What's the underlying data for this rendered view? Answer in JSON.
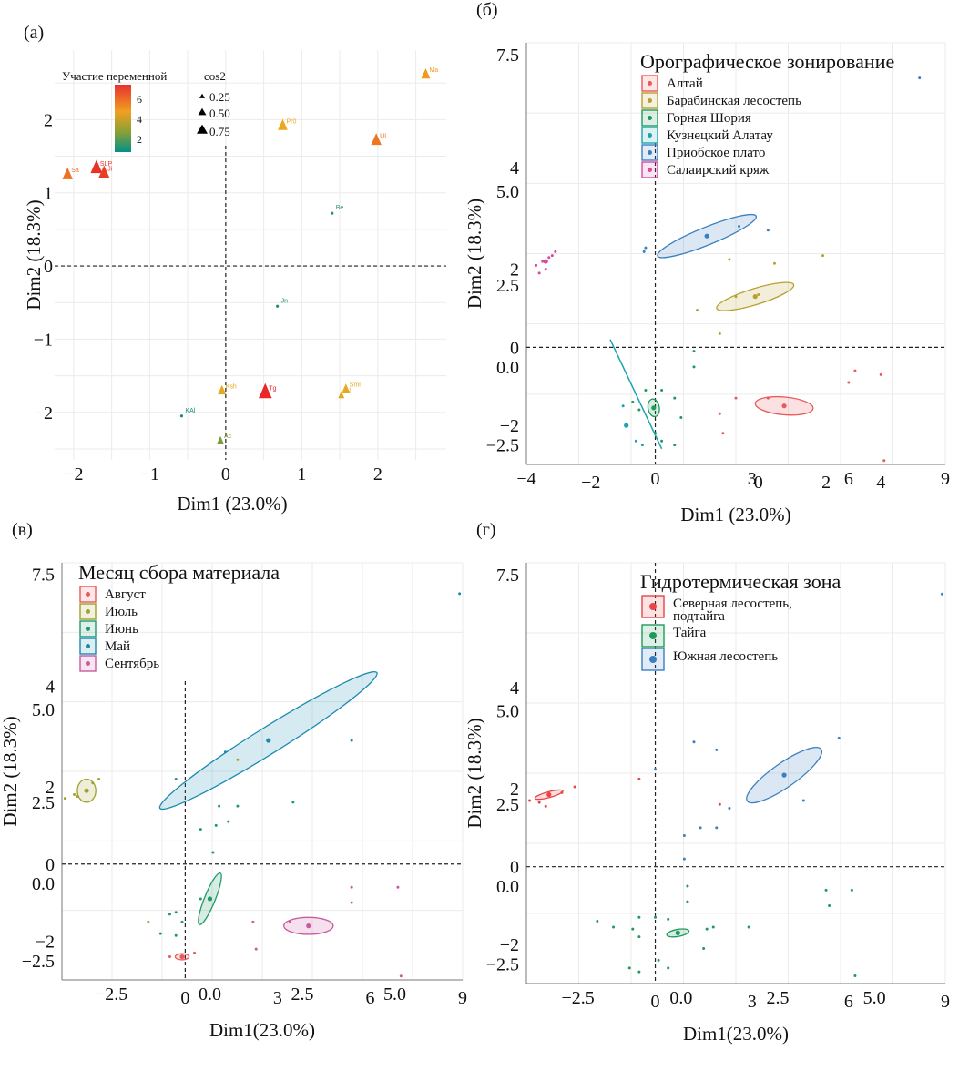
{
  "chart_data": [
    {
      "id": "a",
      "type": "scatter",
      "panel_label": "(a)",
      "xlabel": "Dim1 (23.0%)",
      "ylabel": "Dim2 (18.3%)",
      "xlim": [
        -2.25,
        2.9
      ],
      "ylim": [
        -2.65,
        2.95
      ],
      "x_ticks": [
        "-2",
        "-1",
        "0",
        "1",
        "2"
      ],
      "x_tick_values": [
        -2,
        -1,
        0,
        1,
        2
      ],
      "y_ticks": [
        "2",
        "1",
        "0",
        "-1",
        "-2"
      ],
      "y_tick_values": [
        2,
        1,
        0,
        -1,
        -2
      ],
      "grid": true,
      "legend_color_title": "Участие переменной",
      "legend_color_ticks": [
        "6",
        "4",
        "2"
      ],
      "legend_size_title": "cos2",
      "legend_size_items": [
        "0.25",
        "0.50",
        "0.75"
      ],
      "points": [
        {
          "label": "Ma",
          "x": 2.63,
          "y": 2.6,
          "contrib": 4.8,
          "cos2": 0.5
        },
        {
          "label": "Pr0",
          "x": 0.75,
          "y": 1.9,
          "contrib": 4.6,
          "cos2": 0.55
        },
        {
          "label": "UL",
          "x": 1.98,
          "y": 1.7,
          "contrib": 5.5,
          "cos2": 0.6
        },
        {
          "label": "Sa",
          "x": -2.08,
          "y": 1.23,
          "contrib": 5.6,
          "cos2": 0.6
        },
        {
          "label": "SLP",
          "x": -1.7,
          "y": 1.32,
          "contrib": 6.8,
          "cos2": 0.7
        },
        {
          "label": "Ji",
          "x": -1.6,
          "y": 1.25,
          "contrib": 6.6,
          "cos2": 0.65
        },
        {
          "label": "Be",
          "x": 1.4,
          "y": 0.72,
          "contrib": 1.6,
          "cos2": 0.1
        },
        {
          "label": "Jn",
          "x": 0.68,
          "y": -0.55,
          "contrib": 1.4,
          "cos2": 0.15
        },
        {
          "label": "Ksh",
          "x": -0.05,
          "y": -1.72,
          "contrib": 4.3,
          "cos2": 0.45
        },
        {
          "label": "Tg",
          "x": 0.52,
          "y": -1.75,
          "contrib": 7.0,
          "cos2": 0.8
        },
        {
          "label": "Sml",
          "x": 1.58,
          "y": -1.7,
          "contrib": 4.4,
          "cos2": 0.45
        },
        {
          "label": "Al",
          "x": 1.52,
          "y": -1.78,
          "contrib": 4.2,
          "cos2": 0.3
        },
        {
          "label": "KAl",
          "x": -0.58,
          "y": -2.05,
          "contrib": 1.3,
          "cos2": 0.1
        },
        {
          "label": "Ac",
          "x": -0.07,
          "y": -2.4,
          "contrib": 2.6,
          "cos2": 0.35
        }
      ]
    },
    {
      "id": "b",
      "type": "scatter",
      "panel_label": "(б)",
      "xlabel": "Dim1 (23.0%)",
      "ylabel": "Dim2 (18.3%)",
      "x_ticks": [
        "-4",
        "-2",
        "0",
        "0",
        "3",
        "2",
        "6",
        "4",
        "9"
      ],
      "y_ticks": [
        "7.5",
        "4",
        "5.0",
        "2",
        "2.5",
        "0",
        "0.0",
        "-2",
        "-2.5"
      ],
      "legend_title": "Орографическое зонирование",
      "legend": [
        {
          "name": "Алтай",
          "color": "#e8595a"
        },
        {
          "name": "Барабинская лесостепь",
          "color": "#b8a030"
        },
        {
          "name": "Горная Шория",
          "color": "#1f9a5a"
        },
        {
          "name": "Кузнецкий Алатау",
          "color": "#1aa3b0"
        },
        {
          "name": "Приобское плато",
          "color": "#3a7fc0"
        },
        {
          "name": "Салаирский кряж",
          "color": "#d64aa0"
        }
      ],
      "series": [
        {
          "name": "Приобское плато",
          "center": [
            1.6,
            2.85
          ],
          "ellipse": {
            "rx": 3.3,
            "ry": 0.55,
            "angle": 22
          },
          "points": [
            [
              -0.3,
              2.55
            ],
            [
              -0.35,
              2.45
            ],
            [
              2.6,
              3.1
            ],
            [
              3.5,
              3.0
            ],
            [
              8.2,
              6.9
            ]
          ]
        },
        {
          "name": "Барабинская лесостепь",
          "center": [
            3.1,
            1.3
          ],
          "ellipse": {
            "rx": 2.5,
            "ry": 0.5,
            "angle": 17
          },
          "points": [
            [
              1.3,
              0.95
            ],
            [
              2.5,
              1.3
            ],
            [
              3.2,
              1.35
            ],
            [
              2.0,
              0.35
            ],
            [
              2.3,
              2.25
            ],
            [
              3.7,
              2.15
            ],
            [
              5.2,
              2.35
            ]
          ]
        },
        {
          "name": "Салаирский кряж",
          "center": [
            -3.4,
            2.2
          ],
          "points": [
            [
              -3.7,
              2.1
            ],
            [
              -3.5,
              2.2
            ],
            [
              -3.3,
              2.3
            ],
            [
              -3.2,
              2.35
            ],
            [
              -3.1,
              2.45
            ],
            [
              -3.6,
              1.9
            ],
            [
              -3.4,
              2.0
            ]
          ]
        },
        {
          "name": "Кузнецкий Алатау",
          "center": [
            -0.9,
            -2.0
          ],
          "line": [
            [
              -1.4,
              0.2
            ],
            [
              0.2,
              -2.6
            ]
          ],
          "points": [
            [
              -0.9,
              -2.0
            ],
            [
              -0.6,
              -2.4
            ],
            [
              -0.4,
              -2.5
            ],
            [
              -1.0,
              -1.5
            ]
          ]
        },
        {
          "name": "Горная Шория",
          "center": [
            -0.05,
            -1.55
          ],
          "ellipse": {
            "rx": 0.35,
            "ry": 0.55,
            "angle": 10
          },
          "points": [
            [
              1.2,
              -0.1
            ],
            [
              1.2,
              -0.5
            ],
            [
              -0.3,
              -1.1
            ],
            [
              0.2,
              -1.1
            ],
            [
              0.6,
              -1.3
            ],
            [
              -0.5,
              -1.6
            ],
            [
              -0.7,
              -1.4
            ],
            [
              0.0,
              -2.2
            ],
            [
              0.2,
              -2.4
            ],
            [
              0.6,
              -2.5
            ],
            [
              0.8,
              -1.8
            ]
          ]
        },
        {
          "name": "Алтай",
          "center": [
            4.0,
            -1.5
          ],
          "ellipse": {
            "rx": 1.8,
            "ry": 0.55,
            "angle": -5
          },
          "points": [
            [
              2.5,
              -1.3
            ],
            [
              2.0,
              -1.7
            ],
            [
              3.5,
              -1.3
            ],
            [
              6.2,
              -0.6
            ],
            [
              6.0,
              -0.9
            ],
            [
              7.0,
              -0.7
            ],
            [
              2.1,
              -2.2
            ],
            [
              7.1,
              -2.9
            ]
          ]
        }
      ]
    },
    {
      "id": "c",
      "type": "scatter",
      "panel_label": "(в)",
      "xlabel": "Dim1(23.0%)",
      "ylabel": "Dim2 (18.3%)",
      "x_ticks": [
        "-2.5",
        "0",
        "0.0",
        "3",
        "2.5",
        "6",
        "5.0",
        "9"
      ],
      "y_ticks": [
        "7.5",
        "4",
        "5.0",
        "2",
        "2.5",
        "0",
        "0.0",
        "-2",
        "-2.5"
      ],
      "legend_title": "Месяц сбора материала",
      "legend": [
        {
          "name": "Август",
          "color": "#e8595a"
        },
        {
          "name": "Июль",
          "color": "#a0a030"
        },
        {
          "name": "Июнь",
          "color": "#1f9a6a"
        },
        {
          "name": "Май",
          "color": "#1a8ab0"
        },
        {
          "name": "Сентябрь",
          "color": "#c85aa0"
        }
      ],
      "series": [
        {
          "name": "Май",
          "center": [
            2.7,
            3.2
          ],
          "ellipse": {
            "rx": 8.3,
            "ry": 0.85,
            "angle": 32
          }
        },
        {
          "name": "Июль",
          "center": [
            -3.2,
            1.9
          ],
          "ellipse": {
            "rx": 0.6,
            "ry": 0.75,
            "angle": 0
          }
        },
        {
          "name": "Июнь",
          "center": [
            0.8,
            -0.9
          ],
          "ellipse": {
            "rx": 1.8,
            "ry": 0.35,
            "angle": 68
          }
        },
        {
          "name": "Сентябрь",
          "center": [
            4.0,
            -1.6
          ],
          "ellipse": {
            "rx": 1.6,
            "ry": 0.55,
            "angle": 0
          }
        },
        {
          "name": "Август",
          "center": [
            -0.1,
            -2.4
          ],
          "ellipse": {
            "rx": 0.45,
            "ry": 0.2,
            "angle": 0
          }
        }
      ]
    },
    {
      "id": "d",
      "type": "scatter",
      "panel_label": "(г)",
      "xlabel": "Dim1(23.0%)",
      "ylabel": "Dim2 (18.3%)",
      "x_ticks": [
        "-2.5",
        "0",
        "0.0",
        "3",
        "2.5",
        "6",
        "5.0",
        "9"
      ],
      "y_ticks": [
        "7.5",
        "4",
        "5.0",
        "2",
        "2.5",
        "0",
        "0.0",
        "-2",
        "-2.5"
      ],
      "legend_title": "Гидротермическая зона",
      "legend": [
        {
          "name": "Северная лесостепь,",
          "name2": "подтайга",
          "color": "#e84545"
        },
        {
          "name": "Тайга",
          "color": "#1f9a5a"
        },
        {
          "name": "Южная лесостепь",
          "color": "#3a7fc0"
        }
      ],
      "series": [
        {
          "name": "Южная лесостепь",
          "center": [
            4.0,
            2.35
          ],
          "ellipse": {
            "rx": 2.8,
            "ry": 0.75,
            "angle": 35
          }
        },
        {
          "name": "Северная лесостепь, подтайга",
          "center": [
            -3.3,
            1.85
          ],
          "ellipse": {
            "rx": 0.9,
            "ry": 0.18,
            "angle": 15
          }
        },
        {
          "name": "Тайга",
          "center": [
            0.7,
            -1.7
          ],
          "ellipse": {
            "rx": 0.7,
            "ry": 0.22,
            "angle": 10
          }
        }
      ]
    }
  ]
}
